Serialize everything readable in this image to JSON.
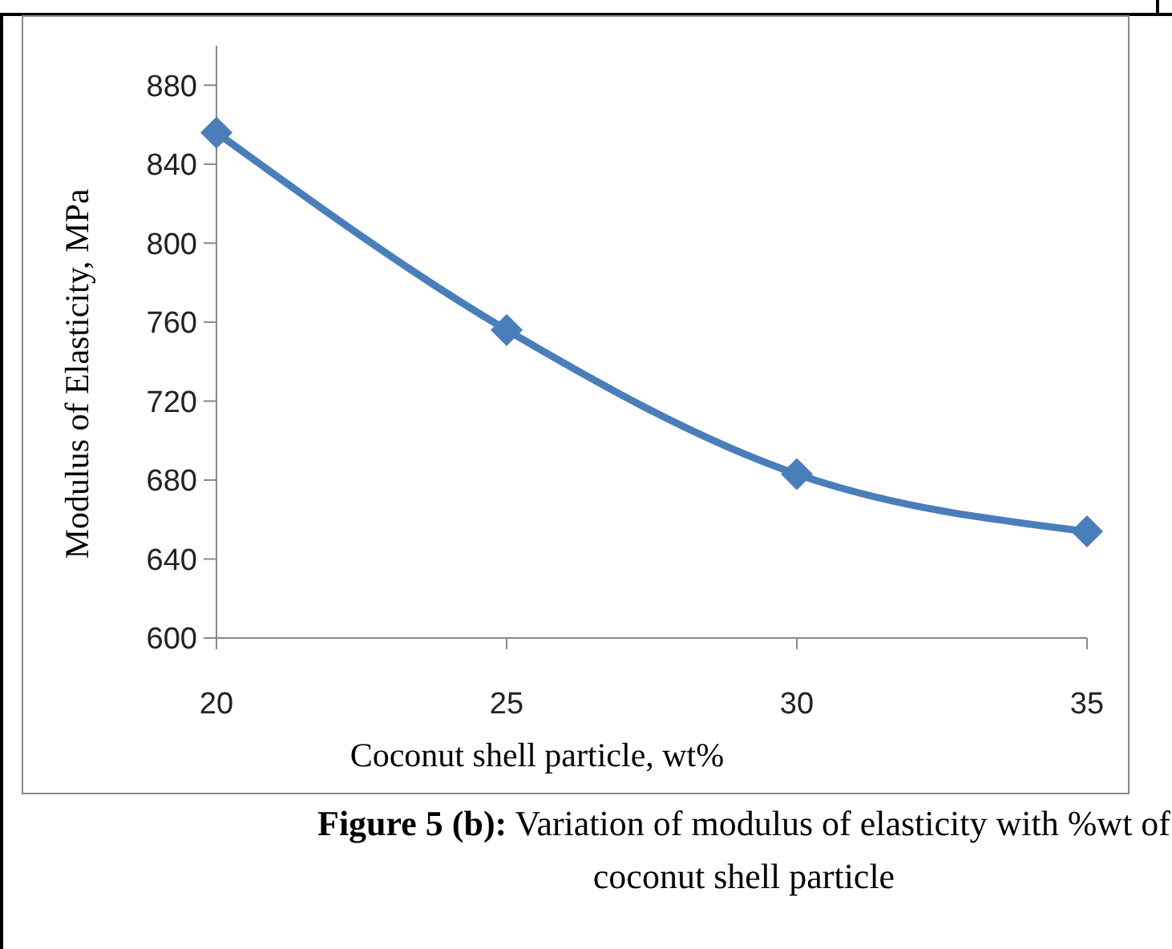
{
  "chart_data": {
    "type": "line",
    "title": "Figure 5 (b):",
    "subtitle": "Variation of modulus of elasticity with %wt of coconut shell particle",
    "xlabel": "Coconut shell particle, wt%",
    "ylabel": "Modulus of Elasticity, MPa",
    "x": [
      20,
      25,
      30,
      35
    ],
    "series": [
      {
        "color": "#4a7ebb",
        "values": [
          856,
          756,
          683,
          654
        ]
      }
    ],
    "xlim": [
      20,
      35
    ],
    "xticks": [
      20,
      25,
      30,
      35
    ],
    "ylim": [
      600,
      900
    ],
    "yticks": [
      600,
      640,
      680,
      720,
      760,
      800,
      840,
      880
    ],
    "grid": false,
    "marker": "diamond",
    "line_style": "solid"
  }
}
